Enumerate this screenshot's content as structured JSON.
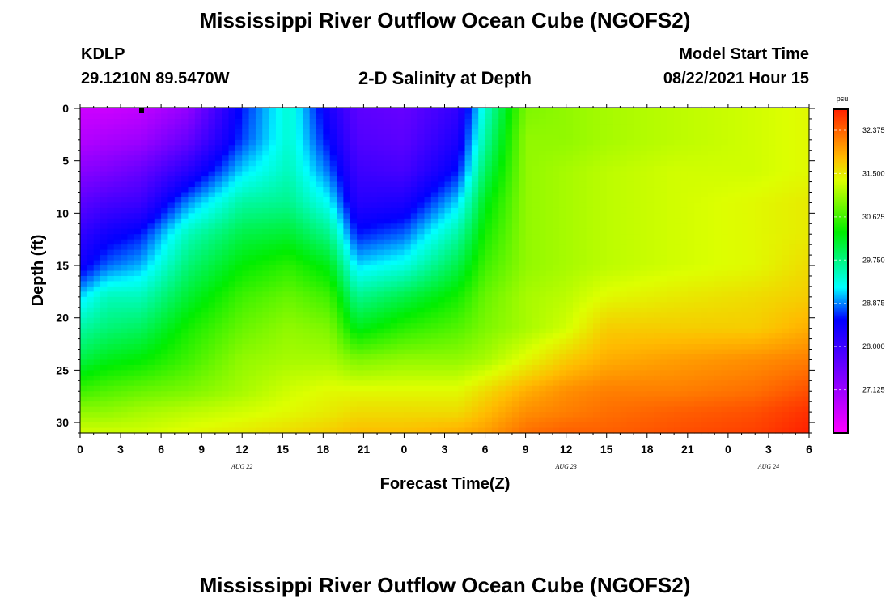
{
  "header": {
    "title": "Mississippi River Outflow Ocean Cube (NGOFS2)",
    "station_id": "KDLP",
    "station_coords": "29.1210N  89.5470W",
    "plot_title": "2-D Salinity at Depth",
    "model_start_label": "Model Start Time",
    "model_start_value": "08/22/2021 Hour 15"
  },
  "footer": {
    "title": "Mississippi River Outflow Ocean Cube (NGOFS2)"
  },
  "chart_data": {
    "type": "heatmap",
    "title": "2-D Salinity at Depth",
    "xlabel": "Forecast Time(Z)",
    "ylabel": "Depth (ft)",
    "x_tick_labels": [
      "0",
      "3",
      "6",
      "9",
      "12",
      "15",
      "18",
      "21",
      "0",
      "3",
      "6",
      "9",
      "12",
      "15",
      "18",
      "21",
      "0",
      "3",
      "6"
    ],
    "x_range_hours": [
      0,
      54
    ],
    "date_labels": [
      {
        "text": "AUG  22",
        "hour": 12
      },
      {
        "text": "AUG  23",
        "hour": 36
      },
      {
        "text": "AUG  24",
        "hour": 51
      }
    ],
    "y_ticks": [
      0,
      5,
      10,
      15,
      20,
      25,
      30
    ],
    "y_range": [
      0,
      31
    ],
    "y_inverted": true,
    "colorbar": {
      "unit": "psu",
      "min": 26.25,
      "max": 32.8,
      "tick_labels": [
        "32.375",
        "31.500",
        "30.625",
        "29.750",
        "28.875",
        "28.000",
        "27.125"
      ],
      "tick_values": [
        32.375,
        31.5,
        30.625,
        29.75,
        28.875,
        28.0,
        27.125
      ]
    },
    "salinity_grid": {
      "hours": [
        0,
        2,
        4.5,
        8,
        12,
        15.5,
        18.5,
        20.5,
        24,
        28,
        30,
        33,
        36,
        39,
        44,
        50,
        54
      ],
      "depths": [
        0,
        3,
        6,
        9,
        12,
        15,
        18,
        21,
        24,
        27,
        29,
        31
      ],
      "values_psu": [
        [
          26.7,
          26.7,
          26.8,
          27.2,
          28.6,
          29.4,
          28.3,
          27.7,
          27.6,
          28.1,
          29.4,
          30.9,
          31.0,
          31.1,
          31.2,
          31.3,
          31.4
        ],
        [
          26.9,
          27.0,
          27.1,
          27.6,
          28.7,
          29.4,
          28.5,
          27.8,
          27.7,
          28.3,
          29.6,
          31.0,
          31.0,
          31.1,
          31.2,
          31.3,
          31.4
        ],
        [
          27.3,
          27.4,
          27.6,
          28.2,
          29.1,
          29.5,
          28.8,
          28.0,
          27.9,
          28.6,
          29.9,
          31.0,
          31.1,
          31.2,
          31.3,
          31.3,
          31.4
        ],
        [
          27.7,
          27.9,
          28.0,
          28.9,
          29.6,
          29.7,
          29.2,
          28.2,
          28.3,
          29.1,
          30.2,
          31.0,
          31.1,
          31.2,
          31.3,
          31.4,
          31.5
        ],
        [
          28.1,
          28.4,
          28.6,
          29.5,
          30.0,
          30.1,
          29.7,
          28.6,
          28.8,
          29.6,
          30.4,
          31.0,
          31.1,
          31.2,
          31.3,
          31.4,
          31.5
        ],
        [
          28.4,
          28.8,
          29.0,
          29.8,
          30.3,
          30.5,
          30.2,
          29.1,
          29.3,
          30.0,
          30.6,
          31.0,
          31.1,
          31.2,
          31.3,
          31.4,
          31.6
        ],
        [
          29.1,
          29.5,
          29.5,
          30.1,
          30.6,
          30.8,
          30.6,
          29.7,
          30.0,
          30.4,
          30.8,
          31.1,
          31.2,
          31.4,
          31.5,
          31.6,
          31.7
        ],
        [
          29.6,
          29.8,
          29.9,
          30.4,
          30.8,
          31.0,
          30.9,
          30.2,
          30.5,
          30.7,
          30.9,
          31.1,
          31.3,
          31.7,
          31.7,
          31.7,
          31.9
        ],
        [
          30.0,
          30.2,
          30.3,
          30.6,
          31.0,
          31.1,
          31.1,
          30.9,
          31.0,
          31.0,
          31.1,
          31.4,
          31.7,
          31.9,
          32.0,
          32.1,
          32.2
        ],
        [
          30.6,
          30.7,
          30.8,
          30.9,
          31.1,
          31.3,
          31.4,
          31.4,
          31.4,
          31.4,
          31.6,
          31.9,
          32.1,
          32.2,
          32.2,
          32.3,
          32.5
        ],
        [
          31.0,
          31.0,
          31.1,
          31.2,
          31.3,
          31.4,
          31.5,
          31.6,
          31.6,
          31.6,
          31.8,
          32.1,
          32.2,
          32.3,
          32.4,
          32.5,
          32.7
        ],
        [
          31.3,
          31.3,
          31.3,
          31.4,
          31.5,
          31.6,
          31.7,
          31.8,
          31.8,
          31.9,
          32.0,
          32.3,
          32.4,
          32.4,
          32.5,
          32.6,
          32.8
        ]
      ]
    }
  }
}
